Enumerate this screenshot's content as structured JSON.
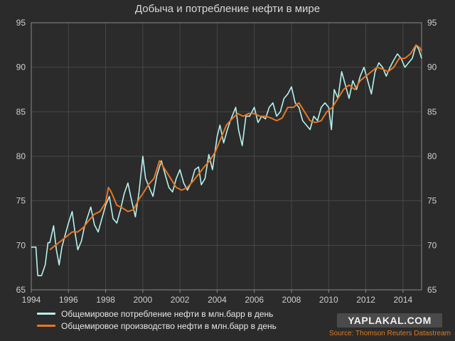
{
  "chart_data": {
    "type": "line",
    "title": "Добыча и потребление нефти в мире",
    "xlim": [
      1994,
      2015
    ],
    "ylim": [
      65,
      95
    ],
    "x_ticks": [
      1994,
      1996,
      1998,
      2000,
      2002,
      2004,
      2006,
      2008,
      2010,
      2012,
      2014
    ],
    "x_tick_labels": [
      "1994",
      "1996",
      "1998",
      "2000",
      "2002",
      "2004",
      "2006",
      "2008",
      "2010",
      "2012",
      "2014"
    ],
    "y_ticks": [
      65,
      70,
      75,
      80,
      85,
      90,
      95
    ],
    "y_tick_labels": [
      "65",
      "70",
      "75",
      "80",
      "85",
      "90",
      "95"
    ],
    "grid": true,
    "legend_position": "bottom-left",
    "series": [
      {
        "name": "Общемировое потребление нефти в млн.барр в день",
        "color": "#b5f2ee",
        "points": [
          [
            1994.0,
            69.8
          ],
          [
            1994.25,
            69.8
          ],
          [
            1994.35,
            66.6
          ],
          [
            1994.55,
            66.6
          ],
          [
            1994.75,
            67.8
          ],
          [
            1994.9,
            70.3
          ],
          [
            1995.0,
            70.3
          ],
          [
            1995.2,
            72.2
          ],
          [
            1995.35,
            69.5
          ],
          [
            1995.5,
            67.8
          ],
          [
            1995.65,
            69.8
          ],
          [
            1995.8,
            71.0
          ],
          [
            1996.0,
            72.5
          ],
          [
            1996.2,
            73.8
          ],
          [
            1996.35,
            71.5
          ],
          [
            1996.5,
            69.5
          ],
          [
            1996.7,
            70.5
          ],
          [
            1996.85,
            72.0
          ],
          [
            1997.0,
            73.0
          ],
          [
            1997.2,
            74.3
          ],
          [
            1997.4,
            72.3
          ],
          [
            1997.6,
            71.5
          ],
          [
            1997.8,
            73.0
          ],
          [
            1998.0,
            74.5
          ],
          [
            1998.2,
            75.5
          ],
          [
            1998.4,
            73.0
          ],
          [
            1998.6,
            72.5
          ],
          [
            1998.8,
            74.0
          ],
          [
            1999.0,
            75.8
          ],
          [
            1999.2,
            77.0
          ],
          [
            1999.4,
            75.0
          ],
          [
            1999.6,
            73.2
          ],
          [
            1999.8,
            76.0
          ],
          [
            2000.0,
            80.0
          ],
          [
            2000.15,
            77.5
          ],
          [
            2000.35,
            76.5
          ],
          [
            2000.55,
            75.5
          ],
          [
            2000.75,
            77.8
          ],
          [
            2001.0,
            79.5
          ],
          [
            2001.2,
            78.0
          ],
          [
            2001.4,
            76.5
          ],
          [
            2001.6,
            76.0
          ],
          [
            2001.8,
            77.5
          ],
          [
            2002.0,
            78.5
          ],
          [
            2002.2,
            77.0
          ],
          [
            2002.4,
            76.2
          ],
          [
            2002.6,
            77.0
          ],
          [
            2002.8,
            78.5
          ],
          [
            2003.0,
            78.8
          ],
          [
            2003.15,
            76.8
          ],
          [
            2003.35,
            77.5
          ],
          [
            2003.55,
            80.2
          ],
          [
            2003.75,
            78.5
          ],
          [
            2004.0,
            82.2
          ],
          [
            2004.15,
            83.5
          ],
          [
            2004.35,
            81.5
          ],
          [
            2004.55,
            83.0
          ],
          [
            2004.75,
            84.2
          ],
          [
            2005.0,
            85.5
          ],
          [
            2005.15,
            83.0
          ],
          [
            2005.35,
            81.2
          ],
          [
            2005.55,
            84.5
          ],
          [
            2005.75,
            84.5
          ],
          [
            2006.0,
            85.5
          ],
          [
            2006.2,
            83.8
          ],
          [
            2006.4,
            84.5
          ],
          [
            2006.6,
            84.2
          ],
          [
            2006.8,
            85.5
          ],
          [
            2007.0,
            86.0
          ],
          [
            2007.2,
            84.5
          ],
          [
            2007.4,
            85.0
          ],
          [
            2007.6,
            86.5
          ],
          [
            2007.8,
            87.0
          ],
          [
            2008.0,
            87.8
          ],
          [
            2008.2,
            86.0
          ],
          [
            2008.4,
            85.5
          ],
          [
            2008.6,
            84.0
          ],
          [
            2008.8,
            83.5
          ],
          [
            2009.0,
            83.0
          ],
          [
            2009.2,
            84.5
          ],
          [
            2009.4,
            84.0
          ],
          [
            2009.6,
            85.5
          ],
          [
            2009.8,
            86.0
          ],
          [
            2010.0,
            85.5
          ],
          [
            2010.15,
            83.0
          ],
          [
            2010.3,
            87.5
          ],
          [
            2010.5,
            86.5
          ],
          [
            2010.7,
            89.5
          ],
          [
            2010.9,
            88.0
          ],
          [
            2011.1,
            86.5
          ],
          [
            2011.3,
            88.5
          ],
          [
            2011.5,
            87.5
          ],
          [
            2011.7,
            89.0
          ],
          [
            2011.9,
            90.0
          ],
          [
            2012.1,
            88.5
          ],
          [
            2012.3,
            87.0
          ],
          [
            2012.5,
            89.5
          ],
          [
            2012.7,
            90.5
          ],
          [
            2012.9,
            90.0
          ],
          [
            2013.1,
            89.0
          ],
          [
            2013.3,
            90.0
          ],
          [
            2013.5,
            90.8
          ],
          [
            2013.7,
            91.5
          ],
          [
            2013.9,
            91.0
          ],
          [
            2014.1,
            90.0
          ],
          [
            2014.3,
            90.5
          ],
          [
            2014.5,
            91.0
          ],
          [
            2014.7,
            92.5
          ],
          [
            2014.85,
            92.0
          ],
          [
            2015.0,
            91.0
          ]
        ]
      },
      {
        "name": "Общемировое производство нефти в млн.барр в день",
        "color": "#e87722",
        "points": [
          [
            1995.0,
            69.5
          ],
          [
            1995.3,
            70.0
          ],
          [
            1995.6,
            70.5
          ],
          [
            1995.9,
            71.0
          ],
          [
            1996.2,
            71.5
          ],
          [
            1996.5,
            71.5
          ],
          [
            1996.8,
            72.0
          ],
          [
            1997.1,
            72.8
          ],
          [
            1997.4,
            73.5
          ],
          [
            1997.7,
            73.8
          ],
          [
            1998.0,
            74.8
          ],
          [
            1998.15,
            76.5
          ],
          [
            1998.3,
            76.0
          ],
          [
            1998.6,
            74.5
          ],
          [
            1998.9,
            74.2
          ],
          [
            1999.2,
            73.8
          ],
          [
            1999.5,
            74.0
          ],
          [
            1999.8,
            75.2
          ],
          [
            2000.0,
            75.8
          ],
          [
            2000.3,
            76.8
          ],
          [
            2000.6,
            77.5
          ],
          [
            2000.9,
            79.5
          ],
          [
            2001.2,
            78.5
          ],
          [
            2001.5,
            77.5
          ],
          [
            2001.8,
            76.5
          ],
          [
            2002.1,
            76.2
          ],
          [
            2002.4,
            76.5
          ],
          [
            2002.7,
            77.2
          ],
          [
            2003.0,
            78.0
          ],
          [
            2003.3,
            78.8
          ],
          [
            2003.6,
            79.5
          ],
          [
            2003.9,
            80.5
          ],
          [
            2004.2,
            82.0
          ],
          [
            2004.5,
            83.5
          ],
          [
            2004.8,
            84.2
          ],
          [
            2005.1,
            84.8
          ],
          [
            2005.4,
            84.5
          ],
          [
            2005.7,
            84.8
          ],
          [
            2006.0,
            84.8
          ],
          [
            2006.3,
            84.5
          ],
          [
            2006.6,
            84.5
          ],
          [
            2006.9,
            84.3
          ],
          [
            2007.2,
            84.0
          ],
          [
            2007.5,
            84.3
          ],
          [
            2007.8,
            85.5
          ],
          [
            2008.1,
            85.5
          ],
          [
            2008.4,
            86.0
          ],
          [
            2008.7,
            85.0
          ],
          [
            2009.0,
            84.0
          ],
          [
            2009.3,
            83.8
          ],
          [
            2009.6,
            84.0
          ],
          [
            2009.9,
            85.0
          ],
          [
            2010.2,
            85.5
          ],
          [
            2010.5,
            86.5
          ],
          [
            2010.8,
            87.5
          ],
          [
            2011.1,
            88.0
          ],
          [
            2011.4,
            87.5
          ],
          [
            2011.7,
            88.5
          ],
          [
            2012.0,
            89.0
          ],
          [
            2012.3,
            89.5
          ],
          [
            2012.6,
            90.0
          ],
          [
            2012.9,
            89.8
          ],
          [
            2013.2,
            89.5
          ],
          [
            2013.5,
            90.0
          ],
          [
            2013.8,
            91.0
          ],
          [
            2014.1,
            91.0
          ],
          [
            2014.4,
            91.5
          ],
          [
            2014.7,
            92.5
          ],
          [
            2014.9,
            92.2
          ],
          [
            2015.0,
            91.8
          ]
        ]
      }
    ]
  },
  "watermark": "YAPLAKAL.COM",
  "source": "Source: Thomson Reuters Datastream"
}
